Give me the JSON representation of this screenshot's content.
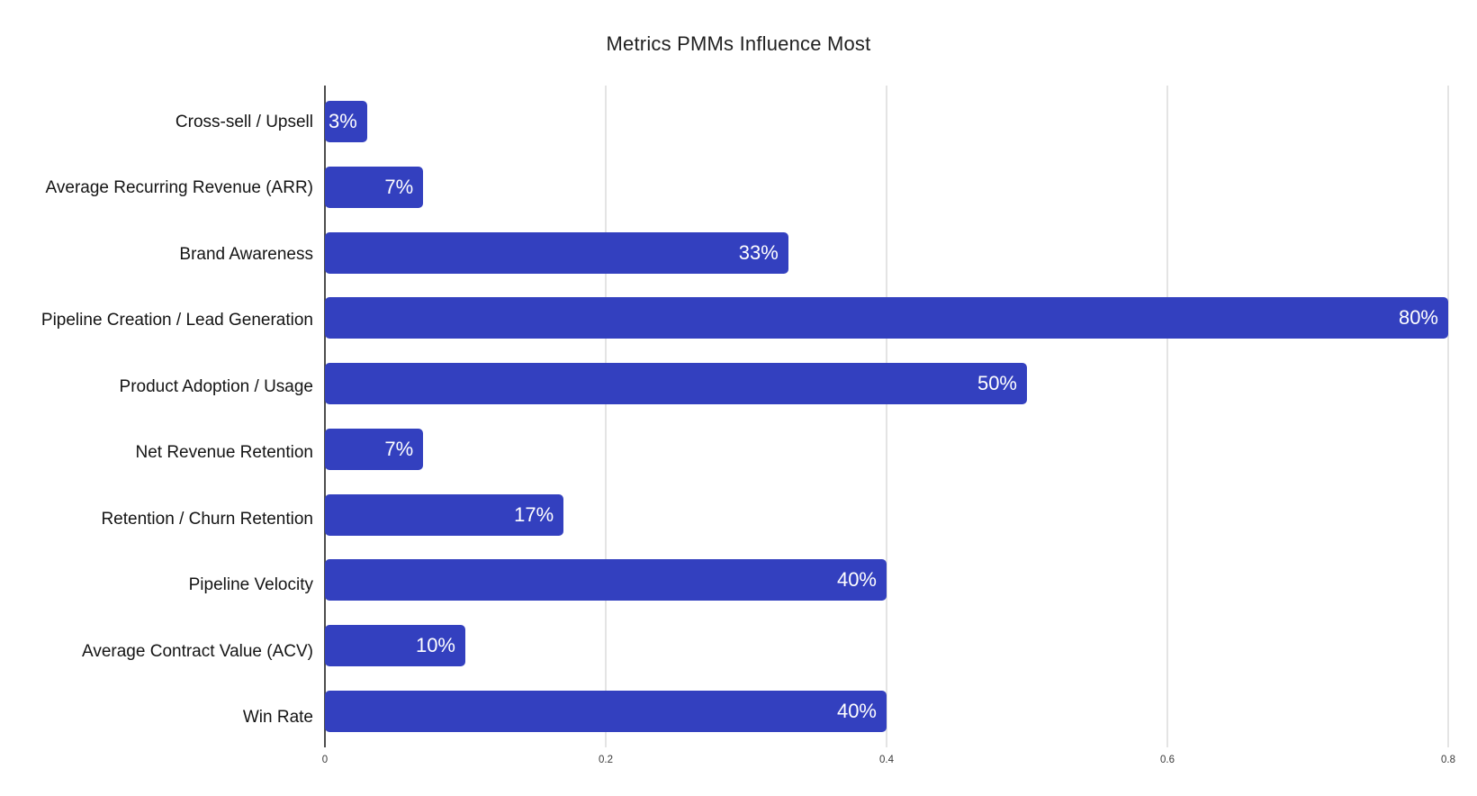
{
  "title": "Metrics PMMs Influence Most",
  "chart_data": {
    "type": "bar",
    "orientation": "horizontal",
    "title": "Metrics PMMs Influence Most",
    "xlabel": "",
    "ylabel": "",
    "categories": [
      "Cross-sell / Upsell",
      "Average Recurring Revenue (ARR)",
      "Brand Awareness",
      "Pipeline Creation / Lead Generation",
      "Product Adoption / Usage",
      "Net Revenue Retention",
      "Retention / Churn Retention",
      "Pipeline Velocity",
      "Average Contract Value (ACV)",
      "Win Rate"
    ],
    "values_percent": [
      3,
      7,
      33,
      80,
      50,
      7,
      17,
      40,
      10,
      40
    ],
    "value_labels": [
      "3%",
      "7%",
      "33%",
      "80%",
      "50%",
      "7%",
      "17%",
      "40%",
      "10%",
      "40%"
    ],
    "x_ticks": [
      "0",
      "0.2",
      "0.4",
      "0.6",
      "0.8"
    ],
    "xlim": [
      0,
      0.8
    ],
    "grid": true,
    "legend": false,
    "value_labels_position": "inside-end"
  },
  "colors": {
    "background": "#FFFFFF",
    "bar": "#3340BF",
    "value_text": "#FFFFFF",
    "gridline": "#E4E4E4",
    "zero_axis": "#4D4D4D",
    "title_text": "#212121",
    "category_text": "#141414",
    "tick_text": "#3A3A3A"
  }
}
